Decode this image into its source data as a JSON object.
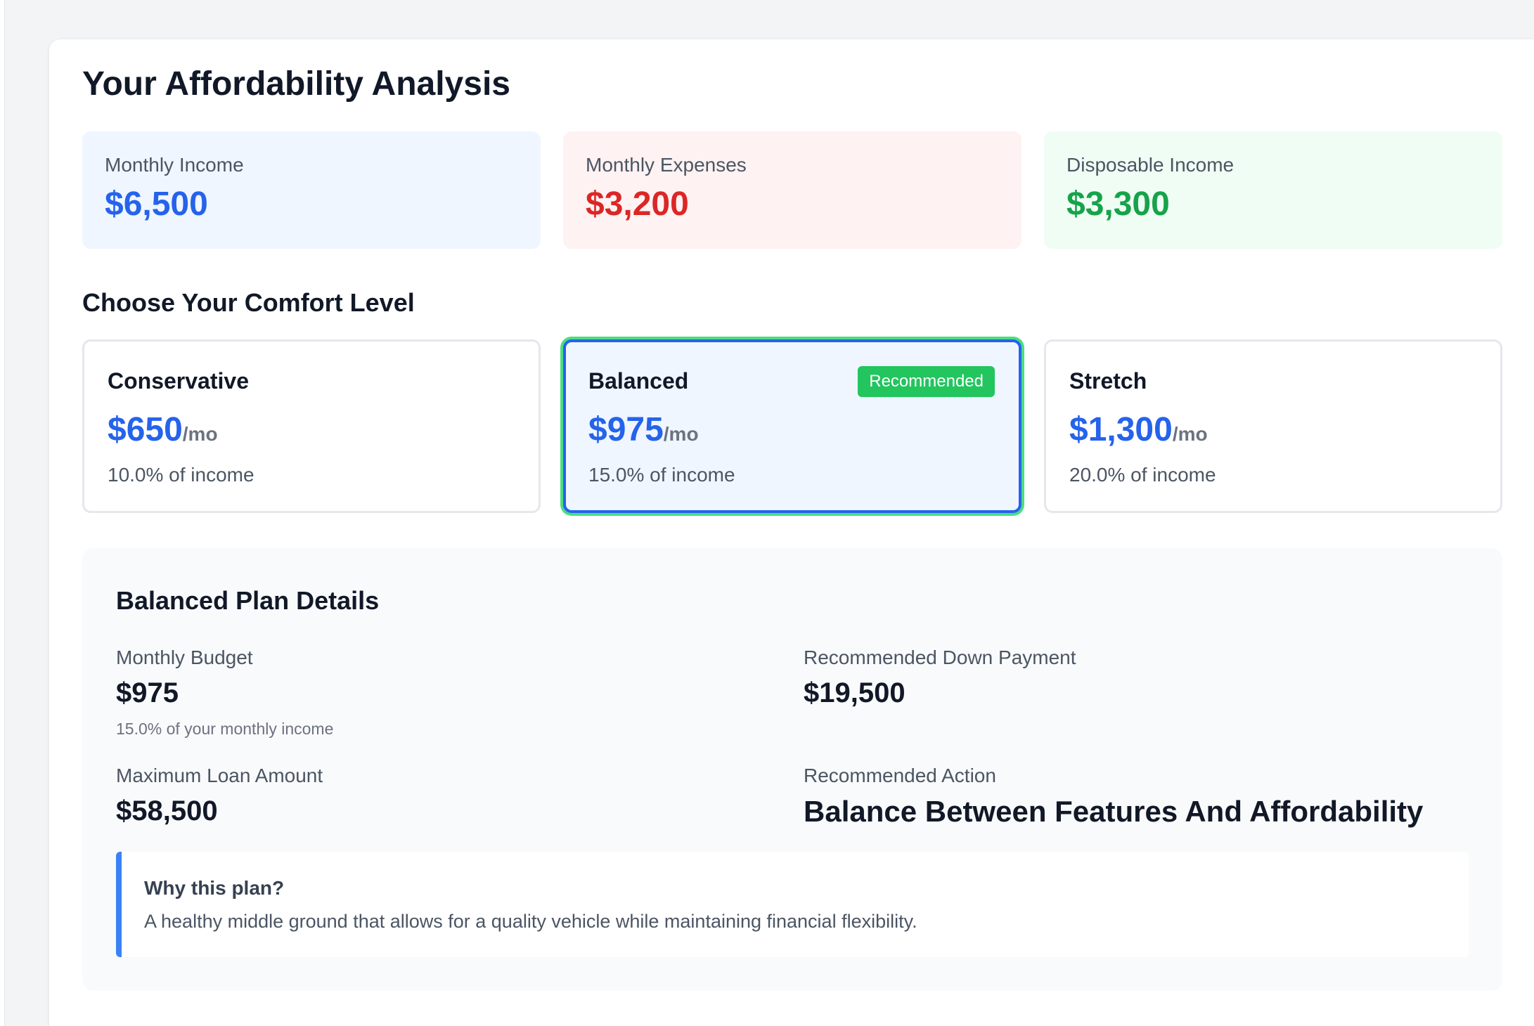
{
  "page": {
    "title": "Your Affordability Analysis"
  },
  "summary": {
    "income": {
      "label": "Monthly Income",
      "value": "$6,500"
    },
    "expenses": {
      "label": "Monthly Expenses",
      "value": "$3,200"
    },
    "disposable": {
      "label": "Disposable Income",
      "value": "$3,300"
    }
  },
  "comfort": {
    "title": "Choose Your Comfort Level",
    "selected": "Balanced",
    "plans": [
      {
        "name": "Conservative",
        "amount": "$650",
        "per": "/mo",
        "percent": "10.0% of income",
        "badge": ""
      },
      {
        "name": "Balanced",
        "amount": "$975",
        "per": "/mo",
        "percent": "15.0% of income",
        "badge": "Recommended"
      },
      {
        "name": "Stretch",
        "amount": "$1,300",
        "per": "/mo",
        "percent": "20.0% of income",
        "badge": ""
      }
    ]
  },
  "details": {
    "title": "Balanced Plan Details",
    "monthly_budget": {
      "label": "Monthly Budget",
      "value": "$975",
      "note": "15.0% of your monthly income"
    },
    "down_payment": {
      "label": "Recommended Down Payment",
      "value": "$19,500"
    },
    "max_loan": {
      "label": "Maximum Loan Amount",
      "value": "$58,500"
    },
    "action": {
      "label": "Recommended Action",
      "value": "Balance Between Features And Affordability"
    },
    "why": {
      "title": "Why this plan?",
      "text": "A healthy middle ground that allows for a quality vehicle while maintaining financial flexibility."
    }
  },
  "colors": {
    "accent": "#2563eb",
    "expense": "#dc2626",
    "positive": "#16a34a",
    "selected_ring": "#4ade80",
    "badge": "#22c55e"
  }
}
